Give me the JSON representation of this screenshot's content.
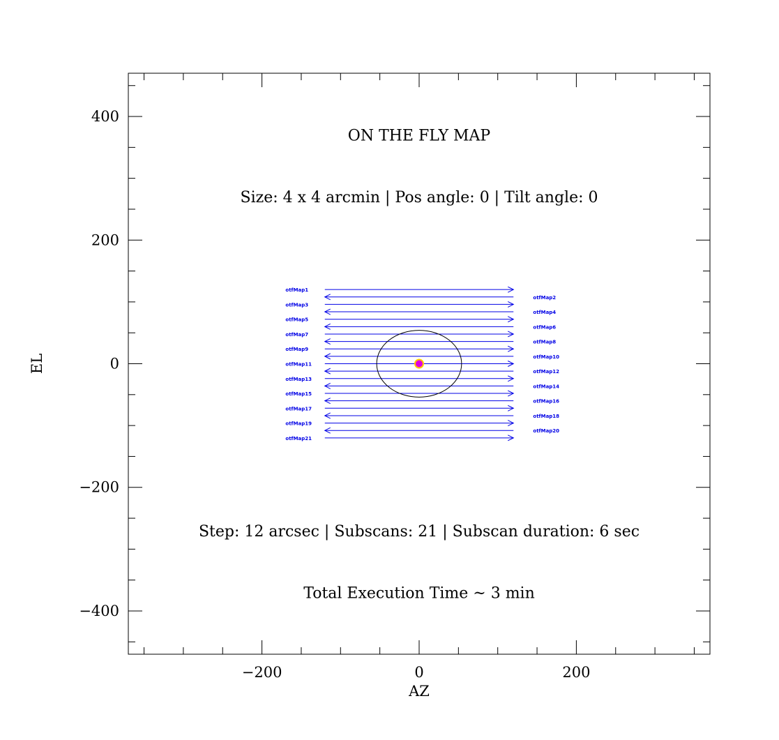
{
  "chart_data": {
    "type": "scatter",
    "xlabel": "AZ",
    "ylabel": "EL",
    "xlim": [
      -370,
      370
    ],
    "ylim": [
      -470,
      470
    ],
    "x_ticks": [
      -200,
      0,
      200
    ],
    "y_ticks": [
      -400,
      -200,
      0,
      200,
      400
    ],
    "x_tick_labels": [
      "−200",
      "0",
      "200"
    ],
    "y_tick_labels": [
      "−400",
      "−200",
      "0",
      "200",
      "400"
    ],
    "x_minor_step": 50,
    "y_minor_step": 50,
    "grid": false,
    "title": "ON THE FLY MAP",
    "info_lines": [
      {
        "text": "Size: 4 x 4 arcmin | Pos angle: 0 | Tilt angle: 0",
        "y": 270
      },
      {
        "text": "Step: 12 arcsec | Subscans: 21 | Subscan duration: 6 sec",
        "y": -270
      },
      {
        "text": "Total Execution Time ~ 3 min",
        "y": -370
      }
    ],
    "title_y": 370,
    "subscans": {
      "count": 21,
      "step": 12,
      "el_start": 120,
      "az_min": -120,
      "az_max": 120,
      "labels": [
        "otfMap1",
        "otfMap2",
        "otfMap3",
        "otfMap4",
        "otfMap5",
        "otfMap6",
        "otfMap7",
        "otfMap8",
        "otfMap9",
        "otfMap10",
        "otfMap11",
        "otfMap12",
        "otfMap13",
        "otfMap14",
        "otfMap15",
        "otfMap16",
        "otfMap17",
        "otfMap18",
        "otfMap19",
        "otfMap20",
        "otfMap21"
      ],
      "label_left_az": -170,
      "label_right_az": 145
    },
    "beam": {
      "az": 0,
      "el": 0,
      "radius": 54
    },
    "source": {
      "az": 0,
      "el": 0
    },
    "colors": {
      "subscan": "#0000e6",
      "source_fill": "#e000e0",
      "source_edge": "#ffcc00",
      "beam": "#000000",
      "axes": "#000000"
    }
  }
}
